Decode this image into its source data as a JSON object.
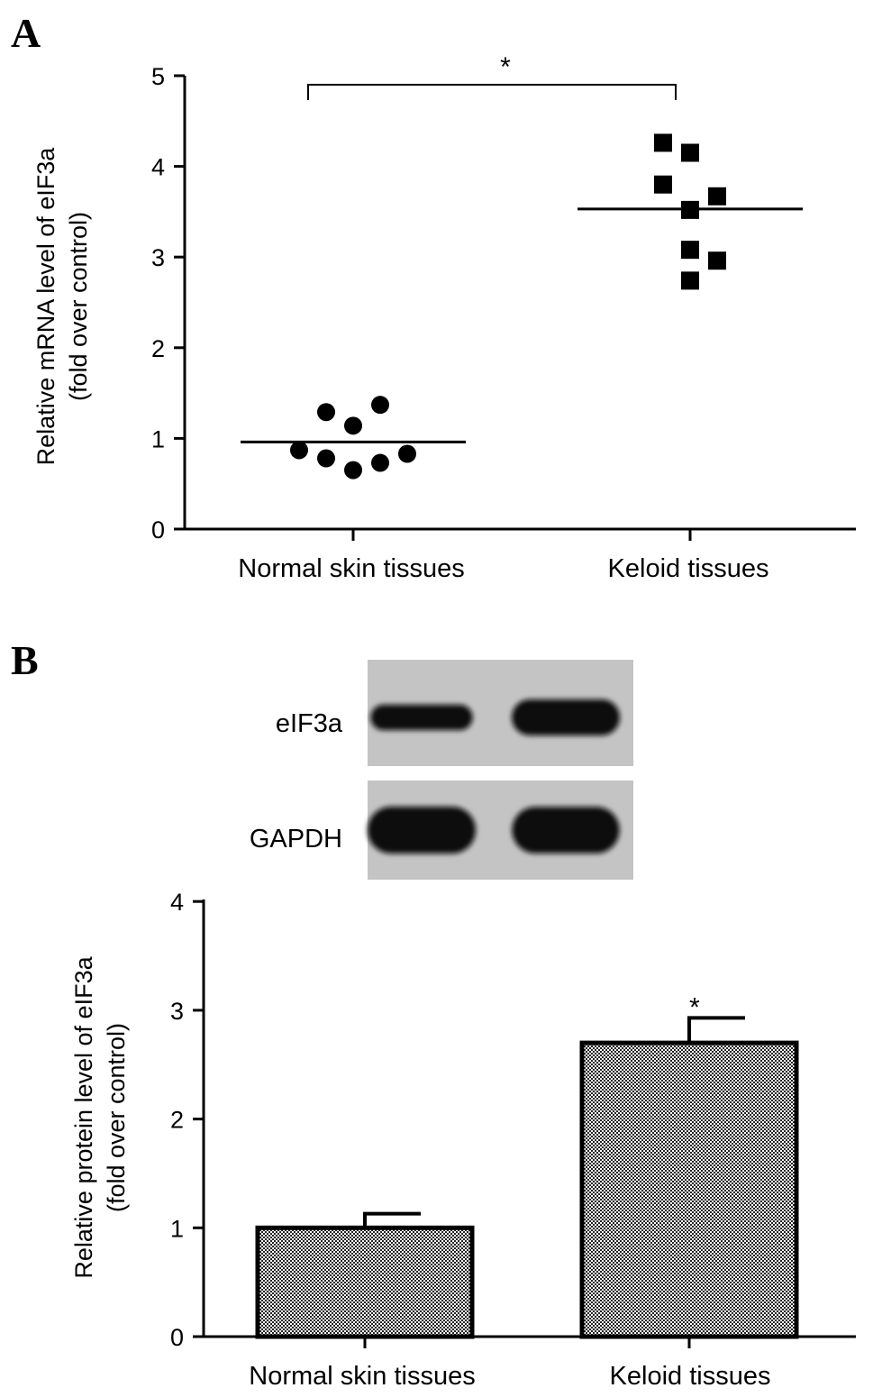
{
  "chart_data": [
    {
      "panel_label": "A",
      "type": "scatter",
      "ylabel_lines": [
        "Relative mRNA level of eIF3a",
        "(fold over control)"
      ],
      "ylim": [
        0,
        5
      ],
      "yticks": [
        0,
        1,
        2,
        3,
        4,
        5
      ],
      "categories": [
        "Normal skin tissues",
        "Keloid tissues"
      ],
      "series": [
        {
          "category": "Normal skin tissues",
          "marker": "circle",
          "points": [
            {
              "x_offset": -2,
              "y": 0.87
            },
            {
              "x_offset": -1,
              "y": 1.29
            },
            {
              "x_offset": -1,
              "y": 0.78
            },
            {
              "x_offset": 0,
              "y": 1.14
            },
            {
              "x_offset": 0,
              "y": 0.65
            },
            {
              "x_offset": 1,
              "y": 1.37
            },
            {
              "x_offset": 1,
              "y": 0.73
            },
            {
              "x_offset": 2,
              "y": 0.83
            }
          ],
          "mean": 0.96
        },
        {
          "category": "Keloid tissues",
          "marker": "square",
          "points": [
            {
              "x_offset": -1,
              "y": 4.26
            },
            {
              "x_offset": -1,
              "y": 3.8
            },
            {
              "x_offset": 0,
              "y": 4.15
            },
            {
              "x_offset": 0,
              "y": 3.52
            },
            {
              "x_offset": 0,
              "y": 3.08
            },
            {
              "x_offset": 0,
              "y": 2.74
            },
            {
              "x_offset": 1,
              "y": 3.67
            },
            {
              "x_offset": 1,
              "y": 2.96
            }
          ],
          "mean": 3.53
        }
      ],
      "significance": {
        "symbol": "*",
        "between": [
          "Normal skin tissues",
          "Keloid tissues"
        ],
        "bracket_y": 4.9
      }
    },
    {
      "panel_label": "B",
      "type": "bar",
      "ylabel_lines": [
        "Relative protein level of eIF3a",
        "(fold over control)"
      ],
      "ylim": [
        0,
        4
      ],
      "yticks": [
        0,
        1,
        2,
        3,
        4
      ],
      "categories": [
        "Normal skin tissues",
        "Keloid tissues"
      ],
      "values": [
        1.0,
        2.7
      ],
      "errors": [
        0.13,
        0.23
      ],
      "significance": {
        "symbol": "*",
        "above": "Keloid tissues"
      },
      "blot": {
        "rows": [
          {
            "label": "eIF3a",
            "bands": [
              0.55,
              1.0
            ]
          },
          {
            "label": "GAPDH",
            "bands": [
              1.0,
              0.95
            ]
          }
        ]
      }
    }
  ]
}
